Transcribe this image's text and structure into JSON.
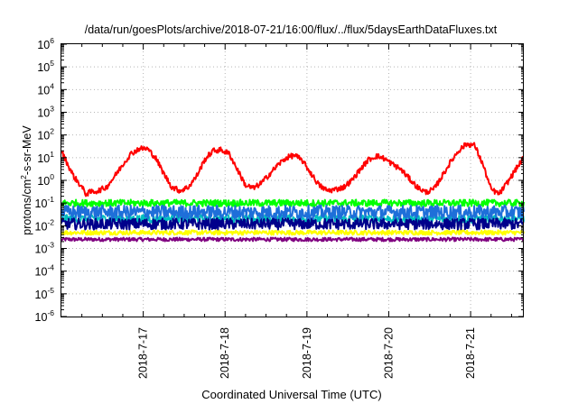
{
  "chart_data": {
    "type": "line",
    "title": "/data/run/goesPlots/archive/2018-07-21/16:00/flux/../flux/5daysEarthDataFluxes.txt",
    "xlabel": "Coordinated Universal Time (UTC)",
    "ylabel": {
      "base": "protons/cm",
      "sup": "2",
      "rest": "-s-sr-MeV"
    },
    "y_scale": "log",
    "ylim": [
      1e-06,
      1000000.0
    ],
    "xlim": [
      0,
      5.65
    ],
    "grid": true,
    "legend": "none",
    "y_ticks": [
      {
        "base": "10",
        "exp": "-6",
        "value": -6
      },
      {
        "base": "10",
        "exp": "-5",
        "value": -5
      },
      {
        "base": "10",
        "exp": "-4",
        "value": -4
      },
      {
        "base": "10",
        "exp": "-3",
        "value": -3
      },
      {
        "base": "10",
        "exp": "-2",
        "value": -2
      },
      {
        "base": "10",
        "exp": "-1",
        "value": -1
      },
      {
        "base": "10",
        "exp": "0",
        "value": 0
      },
      {
        "base": "10",
        "exp": "1",
        "value": 1
      },
      {
        "base": "10",
        "exp": "2",
        "value": 2
      },
      {
        "base": "10",
        "exp": "3",
        "value": 3
      },
      {
        "base": "10",
        "exp": "4",
        "value": 4
      },
      {
        "base": "10",
        "exp": "5",
        "value": 5
      },
      {
        "base": "10",
        "exp": "6",
        "value": 6
      }
    ],
    "x_ticks": [
      {
        "label": "2018-7-17",
        "value": 1.0
      },
      {
        "label": "2018-7-18",
        "value": 2.0
      },
      {
        "label": "2018-7-19",
        "value": 3.0
      },
      {
        "label": "2018-7-20",
        "value": 4.0
      },
      {
        "label": "2018-7-21",
        "value": 5.0
      }
    ],
    "series": [
      {
        "color": "#800080",
        "noise": 0.08,
        "x": [
          0,
          5.65
        ],
        "y": [
          0.0025,
          0.0025
        ]
      },
      {
        "color": "#ffff00",
        "noise": 0.1,
        "x": [
          0,
          5.65
        ],
        "y": [
          0.005,
          0.005
        ]
      },
      {
        "color": "#00bfbf",
        "noise": 0.18,
        "x": [
          0,
          5.65
        ],
        "y": [
          0.02,
          0.02
        ]
      },
      {
        "color": "#00008b",
        "noise": 0.25,
        "x": [
          0,
          5.65
        ],
        "y": [
          0.012,
          0.012
        ]
      },
      {
        "color": "#00ff00",
        "noise": 0.15,
        "x": [
          0,
          5.65
        ],
        "y": [
          0.1,
          0.1
        ]
      },
      {
        "color": "#1e6fd9",
        "noise": 0.3,
        "x": [
          0,
          5.65
        ],
        "y": [
          0.04,
          0.04
        ]
      },
      {
        "color": "#ff0000",
        "noise": 0.12,
        "x": [
          0,
          0.05,
          0.15,
          0.25,
          0.3,
          0.35,
          0.45,
          0.55,
          0.65,
          0.75,
          0.85,
          0.95,
          1.05,
          1.15,
          1.25,
          1.35,
          1.45,
          1.55,
          1.65,
          1.75,
          1.85,
          1.95,
          2.05,
          2.15,
          2.25,
          2.35,
          2.45,
          2.55,
          2.65,
          2.75,
          2.85,
          2.95,
          3.05,
          3.15,
          3.25,
          3.35,
          3.45,
          3.55,
          3.65,
          3.75,
          3.85,
          3.95,
          4.05,
          4.15,
          4.25,
          4.35,
          4.45,
          4.55,
          4.65,
          4.75,
          4.85,
          4.95,
          5.05,
          5.15,
          5.25,
          5.35,
          5.45,
          5.55,
          5.65
        ],
        "y": [
          20,
          8,
          1.5,
          0.5,
          0.25,
          0.3,
          0.35,
          0.5,
          1.5,
          5,
          15,
          25,
          25,
          10,
          2,
          0.5,
          0.35,
          0.5,
          1.5,
          8,
          20,
          22,
          15,
          3,
          0.6,
          0.45,
          0.8,
          2,
          5,
          10,
          13,
          7,
          2,
          0.6,
          0.35,
          0.4,
          0.5,
          1,
          3,
          8,
          12,
          9,
          5,
          3,
          1.2,
          0.5,
          0.3,
          0.4,
          1.5,
          6,
          20,
          40,
          35,
          5,
          0.4,
          0.25,
          0.8,
          3,
          10
        ]
      }
    ]
  }
}
